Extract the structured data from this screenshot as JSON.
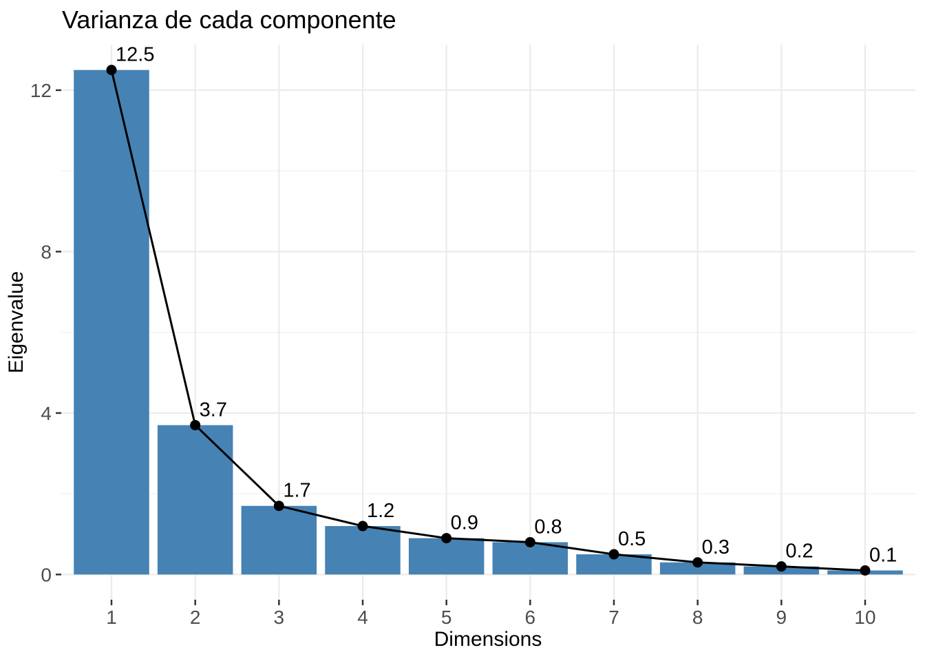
{
  "figure": {
    "background": "#FFFFFF"
  },
  "chart_data": {
    "type": "bar",
    "overlay": "line-with-points",
    "title": "Varianza de cada componente",
    "xlabel": "Dimensions",
    "ylabel": "Eigenvalue",
    "categories": [
      "1",
      "2",
      "3",
      "4",
      "5",
      "6",
      "7",
      "8",
      "9",
      "10"
    ],
    "values": [
      12.5,
      3.7,
      1.7,
      1.2,
      0.9,
      0.8,
      0.5,
      0.3,
      0.2,
      0.1
    ],
    "value_labels": [
      "12.5",
      "3.7",
      "1.7",
      "1.2",
      "0.9",
      "0.8",
      "0.5",
      "0.3",
      "0.2",
      "0.1"
    ],
    "x_numeric": [
      1,
      2,
      3,
      4,
      5,
      6,
      7,
      8,
      9,
      10
    ],
    "xlim": [
      0.4,
      10.6
    ],
    "ylim": [
      -0.625,
      13.125
    ],
    "yticks": [
      0,
      4,
      8,
      12
    ],
    "ytick_labels": [
      "0",
      "4",
      "8",
      "12"
    ],
    "yminor": [
      2,
      6,
      10
    ],
    "bar_width_units": 0.9,
    "grid": true,
    "legend": "none",
    "colors": {
      "bar": "#4682B4",
      "line": "#000000",
      "point": "#000000",
      "grid_major": "#EBEBEB",
      "grid_minor": "#F2F2F2",
      "tick": "#333333",
      "tick_label": "#4D4D4D",
      "text": "#000000",
      "background": "#FFFFFF"
    }
  }
}
